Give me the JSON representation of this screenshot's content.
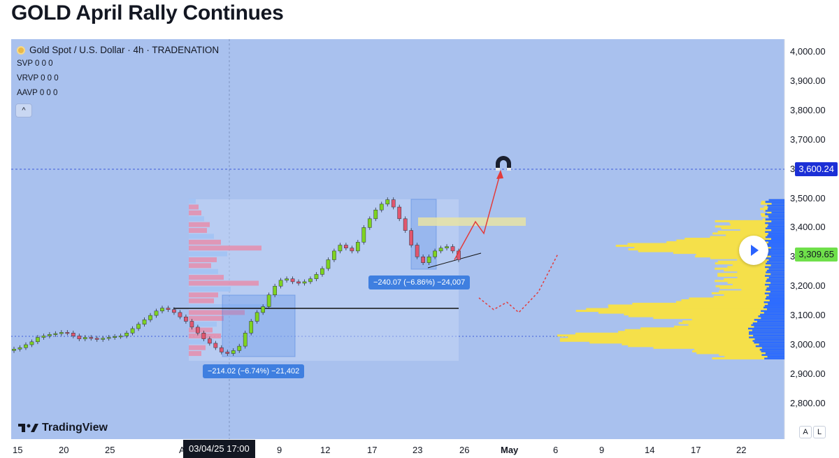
{
  "headline": "GOLD April Rally Continues",
  "legend": {
    "title": "Gold Spot / U.S. Dollar · 4h · TRADENATION",
    "rows": [
      "SVP  0  0  0",
      "VRVP  0  0  0",
      "AAVP  0  0  0"
    ],
    "collapse_icon": "^"
  },
  "price_tags": {
    "target": "3,600.24",
    "current": "3,309.65"
  },
  "measurements": {
    "first": "−214.02 (−6.74%) −21,402",
    "second": "−240.07 (−6.86%) −24,007"
  },
  "date_badge": "03/04/25  17:00",
  "branding": "TradingView",
  "scale_buttons": [
    "A",
    "L"
  ],
  "colors": {
    "background": "#a9c1ee",
    "up_candle": "#7ed321",
    "down_candle": "#e0566e",
    "target_line": "#3d5bd9",
    "current_tag": "#6fe04a",
    "target_tag": "#1b2fd6",
    "projection": "#e23b3b",
    "volume_profile_blue": "#2d6cff",
    "volume_profile_yellow": "#f5e04a"
  },
  "chart_data": {
    "type": "candlestick",
    "symbol": "Gold Spot / U.S. Dollar",
    "timeframe": "4h",
    "y_ticks": [
      "4,000.00",
      "3,900.00",
      "3,800.00",
      "3,700.00",
      "3,600.00",
      "3,500.00",
      "3,400.00",
      "3,300.00",
      "3,200.00",
      "3,100.00",
      "3,000.00",
      "2,900.00",
      "2,800.00"
    ],
    "ylim": [
      2740,
      4030
    ],
    "x_ticks": [
      "15",
      "20",
      "25",
      "A",
      "9",
      "12",
      "17",
      "23",
      "26",
      "May",
      "6",
      "9",
      "14",
      "17",
      "22"
    ],
    "series": [
      {
        "values": [
          2985,
          2990,
          3000,
          3010,
          3025,
          3030,
          3035,
          3038,
          3042,
          3040,
          3030,
          3020,
          3025,
          3022,
          3018,
          3022,
          3025,
          3028,
          3030,
          3040,
          3055,
          3070,
          3085,
          3100,
          3115,
          3125,
          3120,
          3110,
          3095,
          3080,
          3060,
          3040,
          3020,
          3005,
          2990,
          2975,
          2970,
          2980,
          2995,
          3040,
          3080,
          3110,
          3130,
          3170,
          3200,
          3220,
          3225,
          3215,
          3210,
          3215,
          3225,
          3240,
          3260,
          3290,
          3320,
          3340,
          3330,
          3320,
          3350,
          3400,
          3430,
          3460,
          3480,
          3495,
          3470,
          3430,
          3390,
          3340,
          3300,
          3280,
          3300,
          3320,
          3330,
          3335,
          3320,
          3290
        ]
      }
    ],
    "levels": {
      "target": 3600.24,
      "current": 3309.65,
      "support": 3125,
      "base": 3025
    },
    "projections": [
      {
        "kind": "bullish",
        "points": [
          3290,
          3420,
          3380,
          3590
        ]
      },
      {
        "kind": "bearish",
        "points": [
          3160,
          3120,
          3145,
          3110,
          3180,
          3310
        ]
      }
    ]
  }
}
